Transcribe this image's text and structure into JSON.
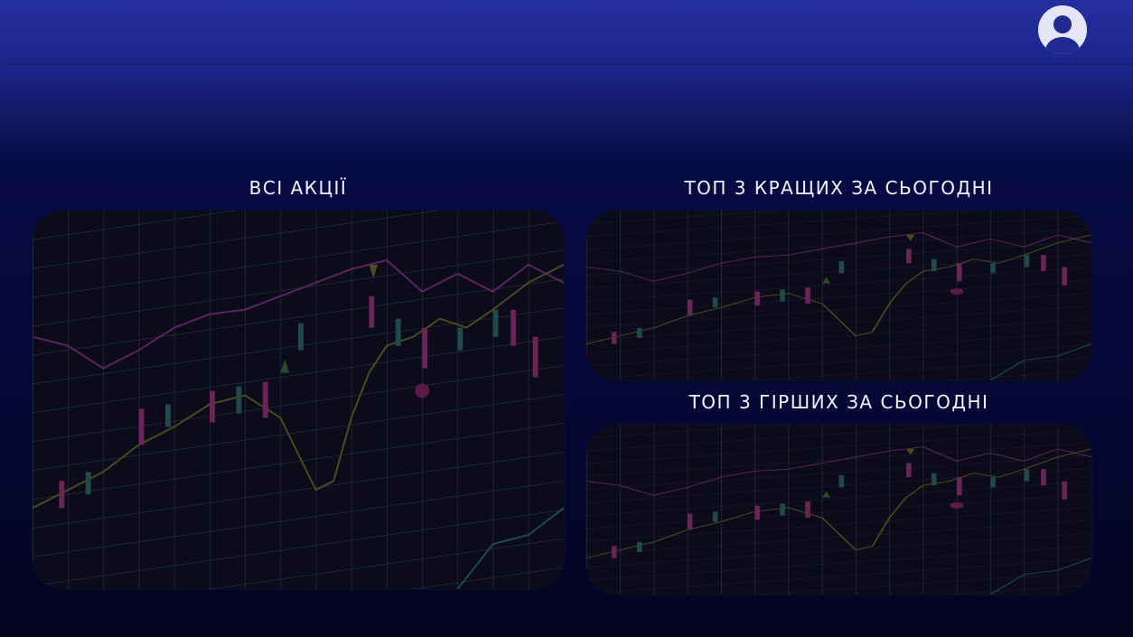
{
  "sections": [
    {
      "title": "ВСІ АКЦІЇ"
    },
    {
      "title": "ТОП 3 КРАЩИХ ЗА СЬОГОДНІ"
    },
    {
      "title": "ТОП 3 ГІРШИХ ЗА СЬОГОДНІ"
    }
  ]
}
